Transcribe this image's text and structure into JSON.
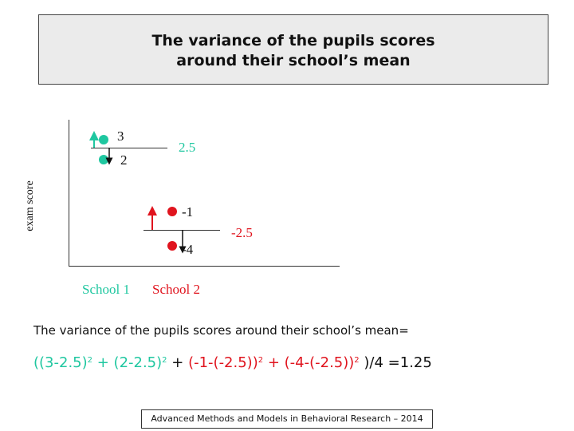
{
  "title": {
    "line1": "The variance of the pupils scores",
    "line2": "around their school’s mean"
  },
  "diagram": {
    "ylabel": "exam score",
    "school1": {
      "name": "School 1",
      "color": "#1fc7a0",
      "scores": [
        "3",
        "2"
      ],
      "mean": "2.5"
    },
    "school2": {
      "name": "School 2",
      "color": "#e0141e",
      "scores": [
        "-1",
        "-4"
      ],
      "mean": "-2.5"
    }
  },
  "description": "The variance of the pupils scores around their school’s mean=",
  "formula": {
    "open": "((3-2.5)",
    "sq1": "2",
    "t2": " + (2-2.5)",
    "sq2": "2",
    "plus1": " + ",
    "t3": "(-1-(-2.5))",
    "sq3": "2",
    "t4": " + (-4-(-2.5))",
    "sq4": "2",
    "close": " )/4 =1.25"
  },
  "footer": "Advanced Methods and Models in Behavioral Research – 2014"
}
